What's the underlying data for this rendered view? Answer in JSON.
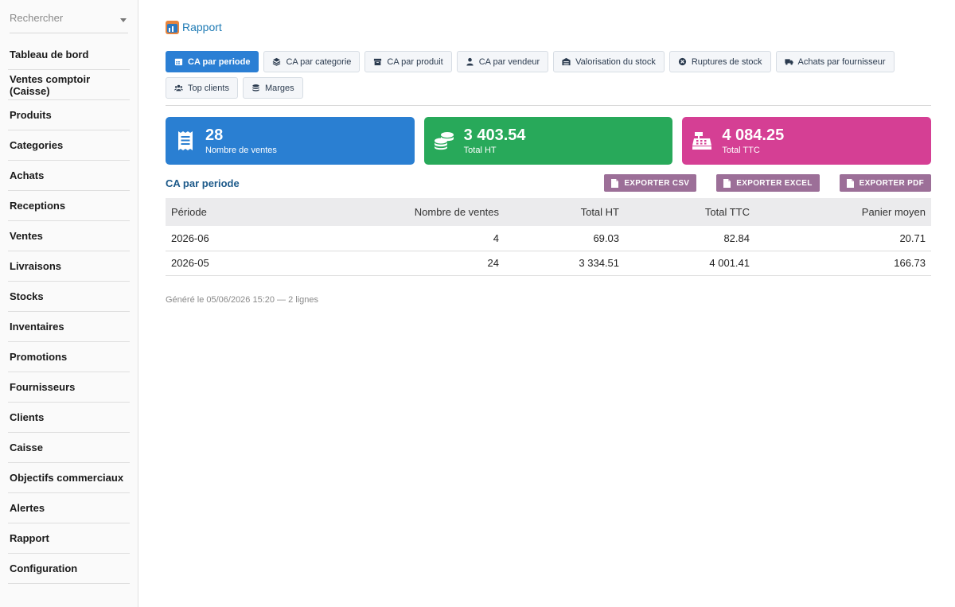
{
  "sidebar": {
    "search_placeholder": "Rechercher",
    "items": [
      {
        "label": "Tableau de bord"
      },
      {
        "label": "Ventes comptoir (Caisse)"
      },
      {
        "label": "Produits"
      },
      {
        "label": "Categories"
      },
      {
        "label": "Achats"
      },
      {
        "label": "Receptions"
      },
      {
        "label": "Ventes"
      },
      {
        "label": "Livraisons"
      },
      {
        "label": "Stocks"
      },
      {
        "label": "Inventaires"
      },
      {
        "label": "Promotions"
      },
      {
        "label": "Fournisseurs"
      },
      {
        "label": "Clients"
      },
      {
        "label": "Caisse"
      },
      {
        "label": "Objectifs commerciaux"
      },
      {
        "label": "Alertes"
      },
      {
        "label": "Rapport"
      },
      {
        "label": "Configuration"
      }
    ]
  },
  "header": {
    "title": "Rapport"
  },
  "tabs": [
    {
      "label": "CA par periode",
      "icon": "calendar-icon",
      "active": true
    },
    {
      "label": "CA par categorie",
      "icon": "layers-icon"
    },
    {
      "label": "CA par produit",
      "icon": "box-icon"
    },
    {
      "label": "CA par vendeur",
      "icon": "user-icon"
    },
    {
      "label": "Valorisation du stock",
      "icon": "warehouse-icon"
    },
    {
      "label": "Ruptures de stock",
      "icon": "x-circle-icon"
    },
    {
      "label": "Achats par fournisseur",
      "icon": "truck-icon"
    },
    {
      "label": "Top clients",
      "icon": "users-icon"
    },
    {
      "label": "Marges",
      "icon": "coins-icon"
    }
  ],
  "cards": [
    {
      "value": "28",
      "label": "Nombre de ventes",
      "color": "#2a7fd2",
      "icon": "receipt-icon"
    },
    {
      "value": "3 403.54",
      "label": "Total HT",
      "color": "#28a95a",
      "icon": "coins-icon"
    },
    {
      "value": "4 084.25",
      "label": "Total TTC",
      "color": "#d53f94",
      "icon": "cash-register-icon"
    }
  ],
  "section": {
    "title": "CA par periode",
    "export_csv": "EXPORTER CSV",
    "export_excel": "EXPORTER EXCEL",
    "export_pdf": "EXPORTER PDF"
  },
  "table": {
    "headers": [
      "Période",
      "Nombre de ventes",
      "Total HT",
      "Total TTC",
      "Panier moyen"
    ],
    "rows": [
      [
        "2026-06",
        "4",
        "69.03",
        "82.84",
        "20.71"
      ],
      [
        "2026-05",
        "24",
        "3 334.51",
        "4 001.41",
        "166.73"
      ]
    ]
  },
  "footer_note": "Généré le 05/06/2026 15:20 — 2 lignes"
}
